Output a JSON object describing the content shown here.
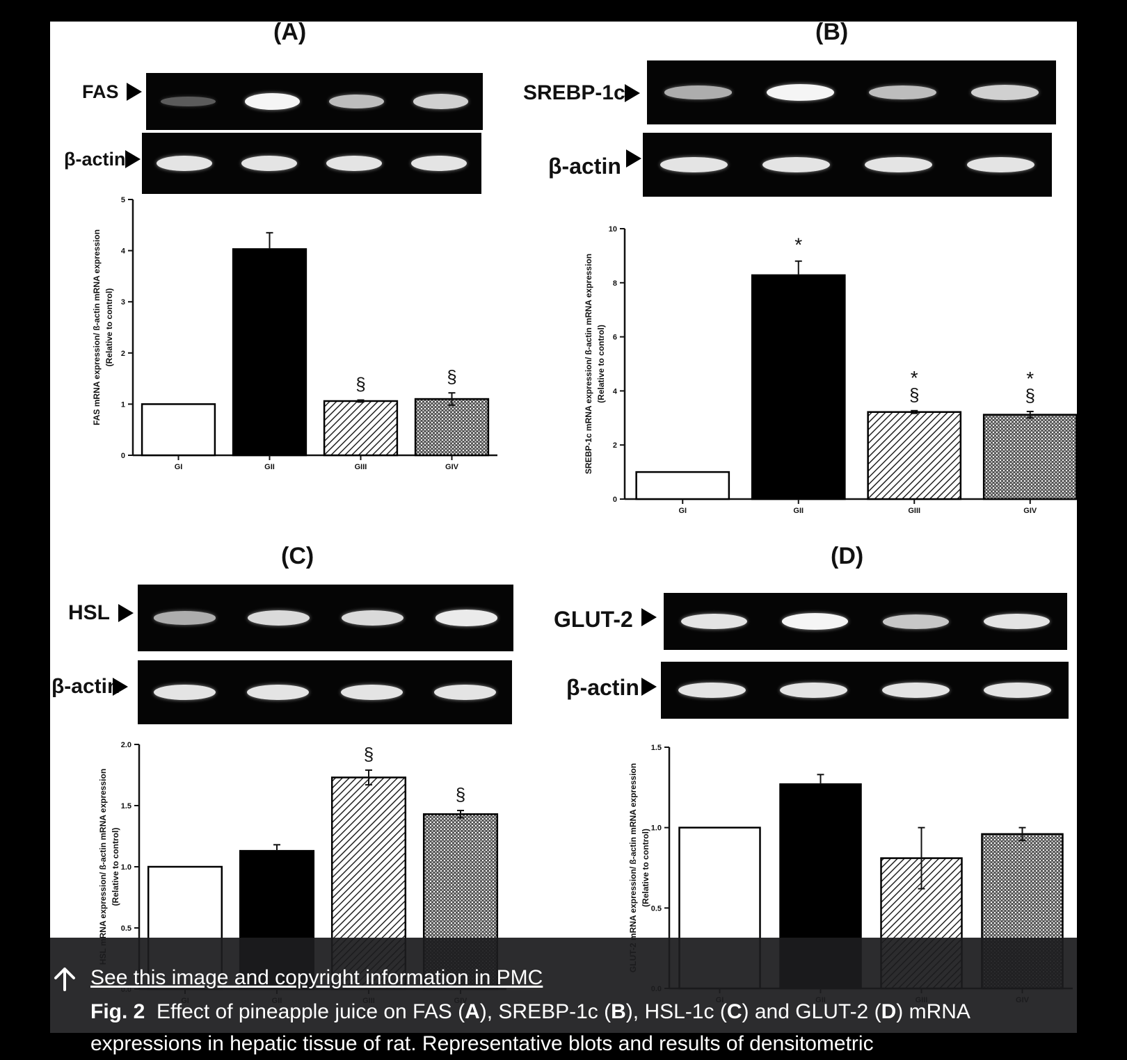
{
  "figure": {
    "panels": [
      {
        "letter": "(A)",
        "gene": "FAS",
        "control": "β-actin",
        "gene_bands": [
          0.15,
          1.0,
          0.7,
          0.8
        ],
        "control_bands": [
          0.9,
          0.9,
          0.9,
          0.9
        ]
      },
      {
        "letter": "(B)",
        "gene": "SREBP-1c",
        "control": "β-actin",
        "gene_bands": [
          0.6,
          1.0,
          0.7,
          0.8
        ],
        "control_bands": [
          0.9,
          0.9,
          0.9,
          0.9
        ]
      },
      {
        "letter": "(C)",
        "gene": "HSL",
        "control": "β-actin",
        "gene_bands": [
          0.6,
          0.85,
          0.85,
          0.95
        ],
        "control_bands": [
          0.9,
          0.9,
          0.9,
          0.9
        ]
      },
      {
        "letter": "(D)",
        "gene": "GLUT-2",
        "control": "β-actin",
        "gene_bands": [
          0.9,
          1.0,
          0.75,
          0.9
        ],
        "control_bands": [
          0.9,
          0.9,
          0.9,
          0.9
        ]
      }
    ]
  },
  "chart_data": [
    {
      "type": "bar",
      "panel": "A",
      "categories": [
        "GI",
        "GII",
        "GIII",
        "GIV"
      ],
      "values": [
        1.0,
        4.03,
        1.06,
        1.1
      ],
      "errors": [
        0,
        0.32,
        0.02,
        0.12
      ],
      "fills": [
        "white",
        "black",
        "diagonal-hatch",
        "crosshatch"
      ],
      "annotations": [
        "",
        "",
        "§",
        "§"
      ],
      "ylabel": "FAS mRNA expression/ ß-actin mRNA expression",
      "ylabel2": "(Relative to control)",
      "ylim": [
        0,
        5
      ],
      "yticks": [
        "0",
        "1",
        "2",
        "3",
        "4",
        "5"
      ]
    },
    {
      "type": "bar",
      "panel": "B",
      "categories": [
        "GI",
        "GII",
        "GIII",
        "GIV"
      ],
      "values": [
        1.0,
        8.28,
        3.22,
        3.12
      ],
      "errors": [
        0,
        0.52,
        0.05,
        0.12
      ],
      "fills": [
        "white",
        "black",
        "diagonal-hatch",
        "crosshatch"
      ],
      "annotations": [
        "",
        "*",
        "*§",
        "*§"
      ],
      "ylabel": "SREBP-1c mRNA expression/ ß-actin mRNA expression",
      "ylabel2": "(Relative to control)",
      "ylim": [
        0,
        10
      ],
      "yticks": [
        "0",
        "2",
        "4",
        "6",
        "8",
        "10"
      ]
    },
    {
      "type": "bar",
      "panel": "C",
      "categories": [
        "GI",
        "GII",
        "GIII",
        "GIV"
      ],
      "values": [
        1.0,
        1.13,
        1.73,
        1.43
      ],
      "errors": [
        0,
        0.05,
        0.06,
        0.03
      ],
      "fills": [
        "white",
        "black",
        "diagonal-hatch",
        "crosshatch"
      ],
      "annotations": [
        "",
        "",
        "§",
        "§"
      ],
      "ylabel": "HSL mRNA expression/ ß-actin mRNA expression",
      "ylabel2": "(Relative to control)",
      "ylim": [
        0.0,
        2.0
      ],
      "yticks": [
        "0.0",
        "0.5",
        "1.0",
        "1.5",
        "2.0"
      ]
    },
    {
      "type": "bar",
      "panel": "D",
      "categories": [
        "GI",
        "GII",
        "GIII",
        "GIV"
      ],
      "values": [
        1.0,
        1.27,
        0.81,
        0.96
      ],
      "errors": [
        0,
        0.06,
        0.19,
        0.04
      ],
      "fills": [
        "white",
        "black",
        "diagonal-hatch",
        "crosshatch"
      ],
      "annotations": [
        "",
        "",
        "",
        ""
      ],
      "ylabel": "GLUT-2 mRNA expression/ ß-actin mRNA expression",
      "ylabel2": "(Relative to control)",
      "ylim": [
        0.0,
        1.5
      ],
      "yticks": [
        "0.0",
        "0.5",
        "1.0",
        "1.5"
      ]
    }
  ],
  "overlay": {
    "link_text": "See this image and copyright information in PMC",
    "caption_fig": "Fig. 2",
    "caption_text_1": "Effect of pineapple juice on FAS (",
    "caption_A": "A",
    "caption_text_2": "), SREBP-1c (",
    "caption_B": "B",
    "caption_text_3": "), HSL-1c (",
    "caption_C": "C",
    "caption_text_4": ") and GLUT-2 (",
    "caption_D": "D",
    "caption_text_5": ") mRNA expressions in hepatic tissue of rat. Representative blots and results of densitometric"
  }
}
